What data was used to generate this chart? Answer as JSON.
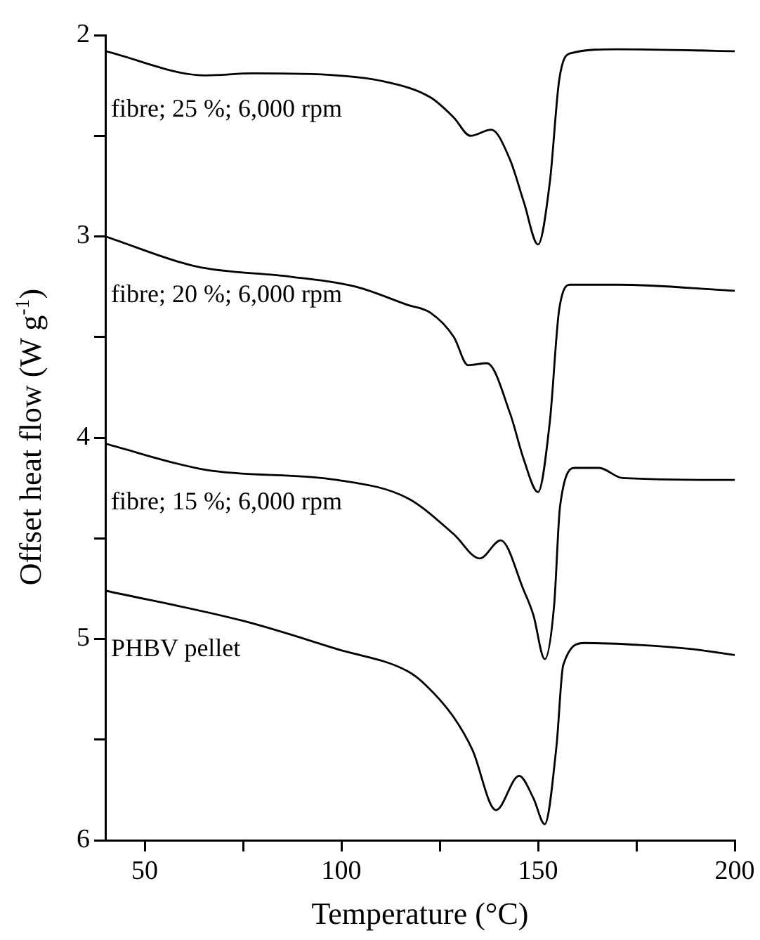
{
  "chart_data": {
    "type": "line",
    "xlabel": "Temperature (°C)",
    "ylabel": "Offset heat flow (W g$^{-1}$)",
    "xlim": [
      40,
      200
    ],
    "ylim": [
      6,
      2
    ],
    "xticks": [
      50,
      {
        "value": 75,
        "label": null
      },
      100,
      {
        "value": 125,
        "label": null
      },
      150,
      {
        "value": 175,
        "label": null
      },
      200
    ],
    "yticks": [
      2,
      {
        "value": 2.5,
        "label": null
      },
      3,
      {
        "value": 3.5,
        "label": null
      },
      4,
      {
        "value": 4.5,
        "label": null
      },
      5,
      {
        "value": 5.5,
        "label": null
      },
      6
    ],
    "grid": false,
    "legend": false,
    "marker": "none",
    "line_style": "solid",
    "series": [
      {
        "name": "fibre; 25 %; 6,000 rpm",
        "color": "#000000",
        "x": [
          40,
          65.6,
          77.5,
          98.9,
          110.8,
          122.7,
          128.6,
          132.8,
          138.1,
          142.9,
          146.4,
          150,
          153,
          155.4,
          158.3,
          170.2,
          200
        ],
        "values": [
          2.08,
          2.2,
          2.19,
          2.2,
          2.23,
          2.31,
          2.41,
          2.5,
          2.47,
          2.62,
          2.83,
          3.04,
          2.73,
          2.22,
          2.09,
          2.07,
          2.08
        ]
      },
      {
        "name": "fibre; 20 %; 6,000 rpm",
        "color": "#000000",
        "x": [
          40,
          63.2,
          87,
          103.7,
          116.8,
          122.7,
          128.6,
          132.2,
          137,
          142.9,
          146.4,
          150,
          153,
          155.4,
          158.3,
          170.2,
          200
        ],
        "values": [
          3.0,
          3.15,
          3.2,
          3.25,
          3.34,
          3.38,
          3.5,
          3.64,
          3.63,
          3.88,
          4.11,
          4.27,
          3.92,
          3.36,
          3.24,
          3.24,
          3.27
        ]
      },
      {
        "name": "fibre; 15 %; 6,000 rpm",
        "color": "#000000",
        "x": [
          40,
          65.6,
          98.9,
          116.8,
          128.6,
          135.2,
          140.5,
          146.4,
          148.8,
          151.7,
          154.1,
          155.6,
          159.5,
          165.5,
          171.4,
          200
        ],
        "values": [
          4.03,
          4.16,
          4.21,
          4.3,
          4.48,
          4.6,
          4.51,
          4.76,
          4.88,
          5.1,
          4.83,
          4.34,
          4.15,
          4.15,
          4.2,
          4.21
        ]
      },
      {
        "name": "PHBV pellet",
        "color": "#000000",
        "x": [
          40,
          75,
          98.9,
          116.8,
          121.5,
          128.6,
          133.3,
          139.3,
          145.2,
          148.8,
          151.7,
          154.7,
          156.4,
          161.8,
          176,
          189.1,
          200
        ],
        "values": [
          4.76,
          4.91,
          5.05,
          5.16,
          5.23,
          5.39,
          5.55,
          5.85,
          5.68,
          5.79,
          5.92,
          5.53,
          5.13,
          5.02,
          5.03,
          5.05,
          5.08
        ]
      }
    ]
  }
}
